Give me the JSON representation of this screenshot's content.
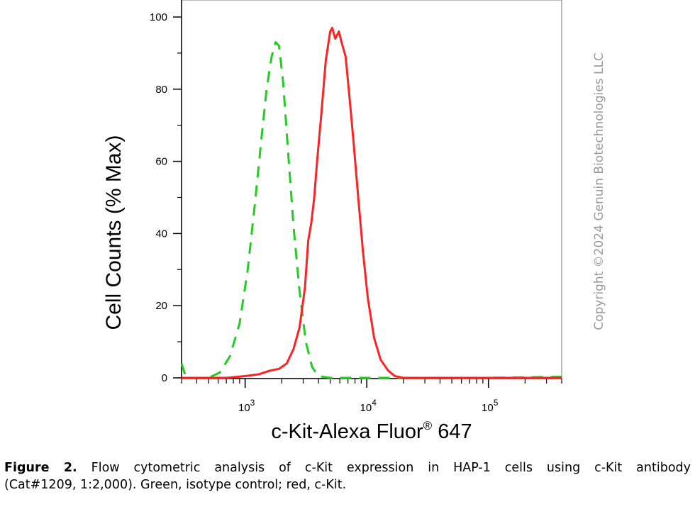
{
  "chart_data": {
    "type": "line",
    "xlabel": "c-Kit-Alexa Fluor",
    "xlabel_sup": "®",
    "xlabel_suffix": " 647",
    "ylabel": "Cell Counts (% Max)",
    "x_scale": "log",
    "xlim": [
      300,
      400000
    ],
    "ylim": [
      0,
      105
    ],
    "y_ticks": [
      "0",
      "20",
      "40",
      "60",
      "80",
      "100"
    ],
    "y_tick_values": [
      0,
      20,
      40,
      60,
      80,
      100
    ],
    "x_tick_decades": [
      1000,
      10000,
      100000
    ],
    "x_tick_labels": [
      {
        "base": "10",
        "exp": "3"
      },
      {
        "base": "10",
        "exp": "4"
      },
      {
        "base": "10",
        "exp": "5"
      }
    ],
    "grid": false,
    "series": [
      {
        "color": "#22cc22",
        "style": "dashed",
        "points": [
          [
            300,
            4
          ],
          [
            320,
            1
          ],
          [
            360,
            0
          ],
          [
            500,
            0
          ],
          [
            620,
            1.5
          ],
          [
            750,
            6
          ],
          [
            900,
            15
          ],
          [
            1050,
            30
          ],
          [
            1200,
            48
          ],
          [
            1350,
            65
          ],
          [
            1500,
            80
          ],
          [
            1650,
            89
          ],
          [
            1780,
            93
          ],
          [
            1900,
            92
          ],
          [
            2050,
            82
          ],
          [
            2250,
            63
          ],
          [
            2500,
            42
          ],
          [
            2800,
            24
          ],
          [
            3150,
            10
          ],
          [
            3550,
            3
          ],
          [
            4000,
            0.5
          ],
          [
            5000,
            0
          ],
          [
            10000,
            0
          ],
          [
            100000,
            0
          ],
          [
            400000,
            0.3
          ]
        ]
      },
      {
        "color": "#ff2222",
        "style": "solid",
        "points": [
          [
            300,
            0
          ],
          [
            700,
            0
          ],
          [
            1000,
            0.5
          ],
          [
            1300,
            1
          ],
          [
            1600,
            2
          ],
          [
            1900,
            2.5
          ],
          [
            2200,
            4
          ],
          [
            2500,
            8
          ],
          [
            2800,
            14
          ],
          [
            3100,
            25
          ],
          [
            3300,
            38
          ],
          [
            3500,
            43
          ],
          [
            3700,
            50
          ],
          [
            3900,
            60
          ],
          [
            4200,
            72
          ],
          [
            4600,
            88
          ],
          [
            5000,
            96
          ],
          [
            5200,
            97
          ],
          [
            5500,
            94
          ],
          [
            5900,
            96
          ],
          [
            6200,
            93
          ],
          [
            6700,
            89
          ],
          [
            7200,
            78
          ],
          [
            7800,
            65
          ],
          [
            8500,
            50
          ],
          [
            9300,
            35
          ],
          [
            10200,
            22
          ],
          [
            11500,
            11
          ],
          [
            13000,
            5
          ],
          [
            15000,
            2
          ],
          [
            17000,
            0.5
          ],
          [
            20000,
            0
          ],
          [
            400000,
            0
          ]
        ]
      }
    ]
  },
  "watermark": "Copyright ©2024 Genuin Biotechnologies LLC",
  "caption": {
    "label": "Figure 2.",
    "line1": " Flow cytometric analysis of c-Kit expression in HAP-1 cells using c-Kit antibody",
    "line2": "(Cat#1209, 1:2,000). Green, isotype control; red, c-Kit."
  }
}
